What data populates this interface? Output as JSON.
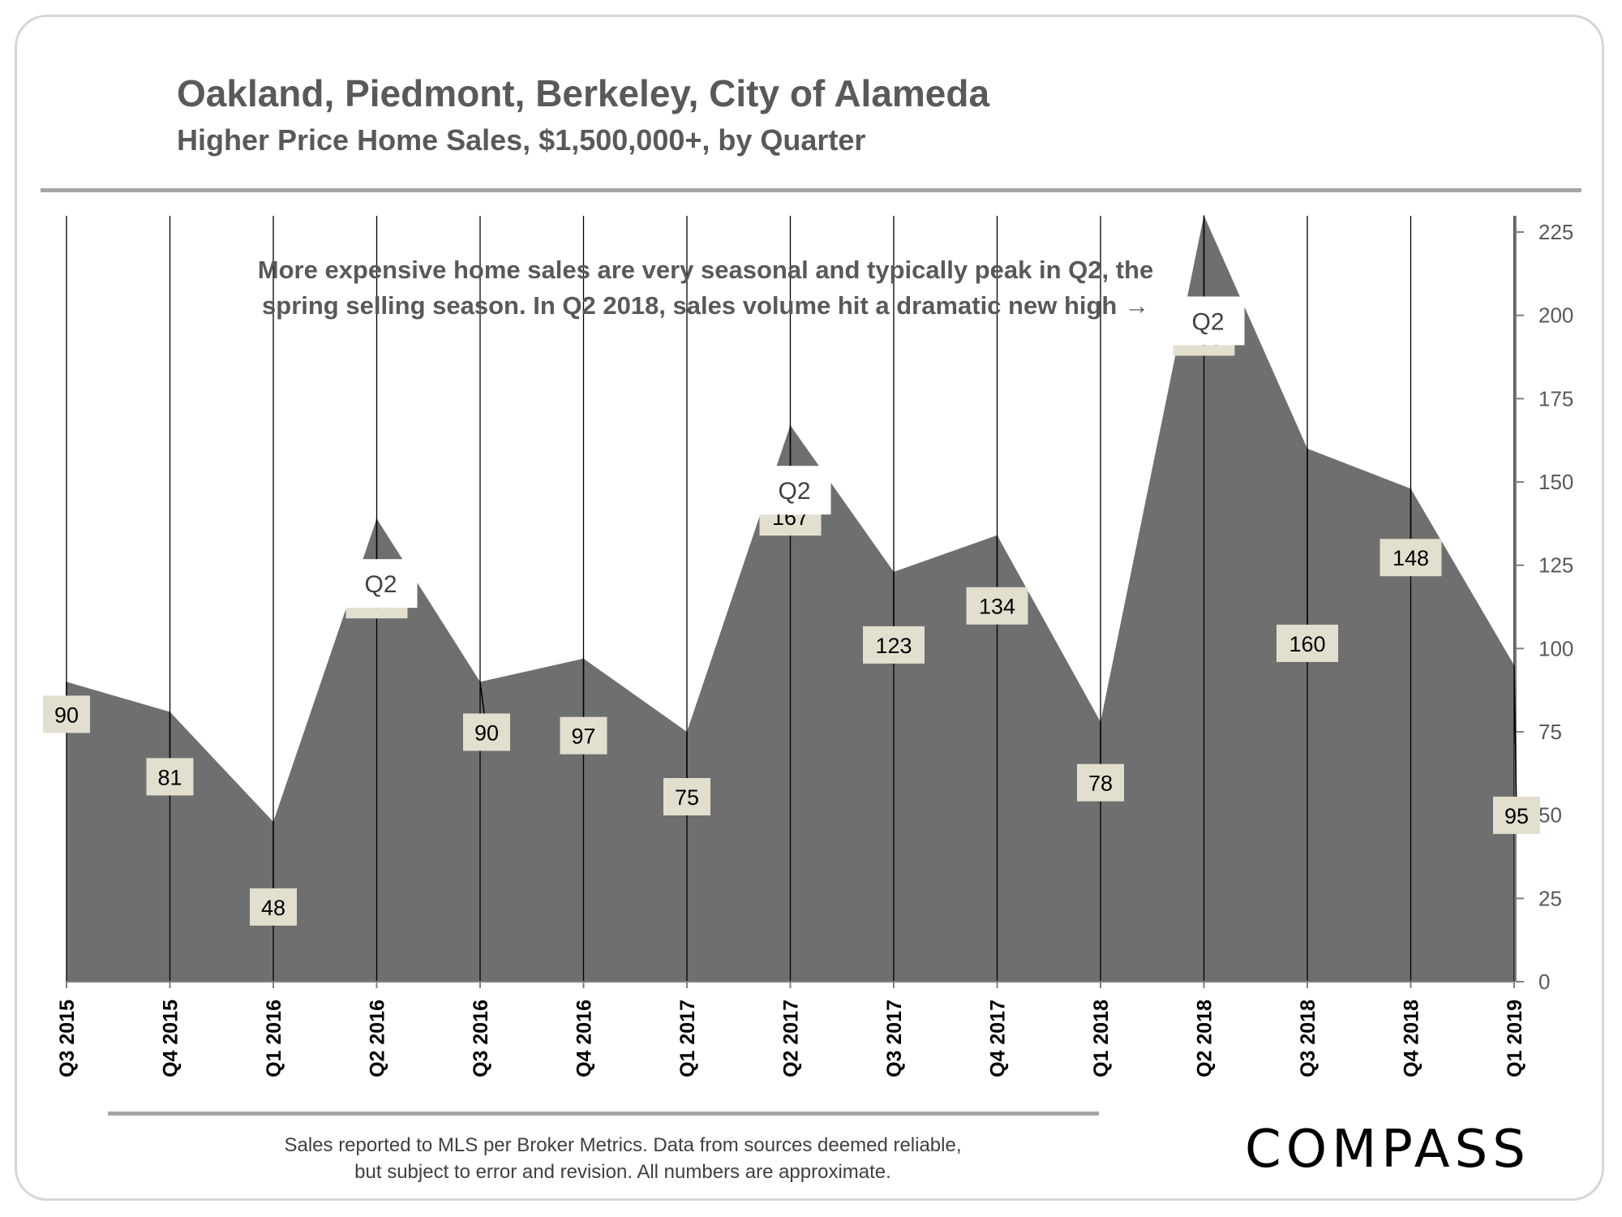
{
  "header": {
    "title": "Oakland, Piedmont, Berkeley, City of Alameda",
    "subtitle": "Higher Price Home Sales, $1,500,000+, by Quarter"
  },
  "footer": {
    "note_line1": "Sales reported to MLS per Broker Metrics. Data from sources deemed reliable,",
    "note_line2": "but subject to error and revision. All numbers are approximate.",
    "brand": "COMPASS"
  },
  "chart_data": {
    "type": "area",
    "title": "Oakland, Piedmont, Berkeley, City of Alameda",
    "subtitle": "Higher Price Home Sales, $1,500,000+, by Quarter",
    "categories": [
      "Q3 2015",
      "Q4 2015",
      "Q1 2016",
      "Q2 2016",
      "Q3 2016",
      "Q4 2016",
      "Q1 2017",
      "Q2 2017",
      "Q3 2017",
      "Q4 2017",
      "Q1 2018",
      "Q2 2018",
      "Q3 2018",
      "Q4 2018",
      "Q1 2019"
    ],
    "values": [
      90,
      81,
      48,
      139,
      90,
      97,
      75,
      167,
      123,
      134,
      78,
      230,
      160,
      148,
      95
    ],
    "data_labels": [
      "90",
      "81",
      "48",
      "139",
      "90",
      "97",
      "75",
      "167",
      "123",
      "134",
      "78",
      "230",
      "160",
      "148",
      "95"
    ],
    "ylim": [
      0,
      225
    ],
    "yticks": [
      0,
      25,
      50,
      75,
      100,
      125,
      150,
      175,
      200,
      225
    ],
    "y_axis_side": "right",
    "grid": "vertical",
    "area_color": "#6f6f6f",
    "label_box_color": "#e3dfcf",
    "annotation_line1": "More expensive home sales are very seasonal and typically peak in Q2, the",
    "annotation_line2": "spring selling season. In Q2 2018, sales volume hit a dramatic new high →",
    "peak_labels": [
      {
        "category": "Q2 2016",
        "text": "Q2"
      },
      {
        "category": "Q2 2017",
        "text": "Q2"
      },
      {
        "category": "Q2 2018",
        "text": "Q2"
      }
    ]
  }
}
